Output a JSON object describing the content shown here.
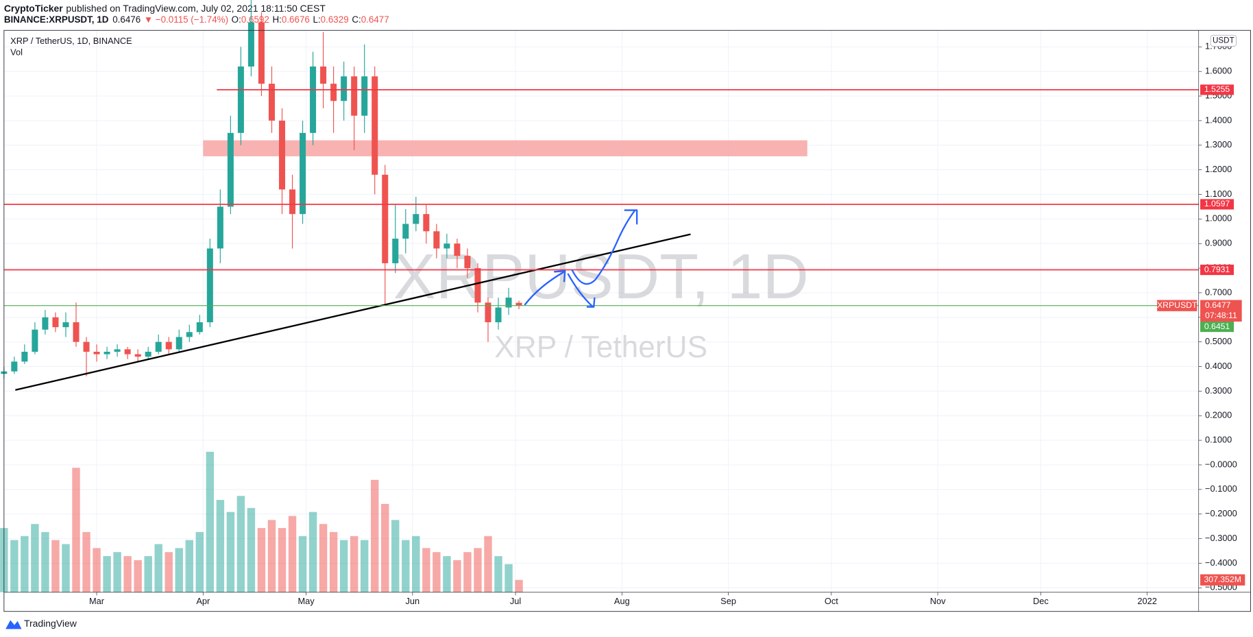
{
  "header": {
    "publisher": "CryptoTicker",
    "published": "published on TradingView.com, July 02, 2021 18:11:50 CEST",
    "symbol": "BINANCE:XRPUSDT, 1D",
    "last": "0.6476",
    "change": "▼ −0.0115 (−1.74%)",
    "o_label": "O:",
    "o": "0.6592",
    "h_label": "H:",
    "h": "0.6676",
    "l_label": "L:",
    "l": "0.6329",
    "c_label": "C:",
    "c": "0.6477"
  },
  "footer": {
    "brand": "TradingView"
  },
  "chart_data": {
    "type": "candlestick",
    "title": "XRP / TetherUS, 1D, BINANCE",
    "currency": "USDT",
    "watermark": "XRPUSDT, 1D",
    "watermark_subtitle": "XRP / TetherUS",
    "x": [
      33,
      36,
      39,
      42,
      45,
      48,
      51,
      54,
      57,
      60,
      63,
      66,
      69,
      72,
      75,
      78,
      81,
      84,
      87,
      90,
      93,
      96,
      99,
      102,
      105,
      108,
      111,
      114,
      117,
      120,
      123,
      126,
      129,
      132,
      135,
      138,
      141,
      144,
      147,
      150,
      153,
      156,
      159,
      162,
      165,
      168,
      171,
      174,
      177,
      180,
      183
    ],
    "open": [
      0.37,
      0.38,
      0.42,
      0.46,
      0.55,
      0.6,
      0.56,
      0.58,
      0.5,
      0.46,
      0.45,
      0.46,
      0.47,
      0.45,
      0.44,
      0.46,
      0.5,
      0.47,
      0.52,
      0.54,
      0.58,
      0.88,
      1.05,
      1.35,
      1.62,
      1.8,
      1.55,
      1.4,
      1.12,
      1.02,
      1.35,
      1.62,
      1.55,
      1.48,
      1.58,
      1.42,
      1.58,
      1.18,
      0.82,
      0.92,
      0.98,
      1.02,
      0.95,
      0.88,
      0.9,
      0.85,
      0.8,
      0.66,
      0.58,
      0.64,
      0.6592
    ],
    "high": [
      0.4,
      0.44,
      0.49,
      0.58,
      0.63,
      0.62,
      0.62,
      0.66,
      0.52,
      0.49,
      0.48,
      0.49,
      0.48,
      0.47,
      0.48,
      0.53,
      0.52,
      0.55,
      0.57,
      0.61,
      0.92,
      1.12,
      1.42,
      1.7,
      1.96,
      1.84,
      1.62,
      1.45,
      1.18,
      1.4,
      1.68,
      1.76,
      1.62,
      1.64,
      1.62,
      1.71,
      1.62,
      1.22,
      1.06,
      1.04,
      1.09,
      1.06,
      0.98,
      0.94,
      0.92,
      0.88,
      0.82,
      0.68,
      0.68,
      0.72,
      0.6676
    ],
    "low": [
      0.35,
      0.37,
      0.41,
      0.45,
      0.53,
      0.54,
      0.52,
      0.48,
      0.36,
      0.42,
      0.43,
      0.44,
      0.43,
      0.42,
      0.43,
      0.45,
      0.45,
      0.46,
      0.5,
      0.53,
      0.56,
      0.82,
      1.02,
      1.3,
      1.58,
      1.5,
      1.35,
      1.02,
      0.88,
      0.98,
      1.3,
      1.45,
      1.35,
      1.4,
      1.28,
      1.35,
      1.1,
      0.65,
      0.78,
      0.86,
      0.95,
      0.9,
      0.84,
      0.84,
      0.8,
      0.76,
      0.62,
      0.5,
      0.55,
      0.61,
      0.6329
    ],
    "close": [
      0.38,
      0.42,
      0.46,
      0.55,
      0.6,
      0.56,
      0.58,
      0.5,
      0.46,
      0.45,
      0.46,
      0.47,
      0.45,
      0.44,
      0.46,
      0.5,
      0.47,
      0.52,
      0.54,
      0.58,
      0.88,
      1.05,
      1.35,
      1.62,
      1.8,
      1.55,
      1.4,
      1.12,
      1.02,
      1.35,
      1.62,
      1.55,
      1.48,
      1.58,
      1.42,
      1.58,
      1.18,
      0.82,
      0.92,
      0.98,
      1.02,
      0.95,
      0.88,
      0.9,
      0.85,
      0.8,
      0.66,
      0.58,
      0.64,
      0.68,
      0.6477
    ],
    "up_color": "#26a69a",
    "down_color": "#ef5350",
    "volume": {
      "name": "Vol",
      "ylim": [
        0,
        14000
      ],
      "values": [
        1600,
        1300,
        1400,
        1700,
        1500,
        1300,
        1200,
        3100,
        1500,
        1100,
        900,
        1000,
        900,
        800,
        900,
        1200,
        1000,
        1100,
        1300,
        1500,
        3500,
        2300,
        2000,
        2400,
        2100,
        1600,
        1800,
        1600,
        1900,
        1400,
        2000,
        1700,
        1500,
        1300,
        1400,
        1300,
        2800,
        2200,
        1800,
        1300,
        1400,
        1100,
        1000,
        900,
        800,
        1000,
        1100,
        1400,
        900,
        700,
        307.352
      ],
      "value_labels": [
        null,
        null,
        null,
        null,
        null,
        null,
        null,
        null,
        null,
        null,
        null,
        null,
        null,
        null,
        null,
        null,
        null,
        null,
        null,
        null,
        null,
        null,
        null,
        null,
        null,
        null,
        null,
        null,
        null,
        null,
        null,
        null,
        null,
        null,
        null,
        null,
        null,
        null,
        null,
        null,
        null,
        null,
        null,
        null,
        null,
        null,
        null,
        null,
        null,
        null,
        "307.352M"
      ]
    },
    "xlim": [
      33,
      381
    ],
    "xticks": [
      {
        "value": 60,
        "label": "Mar"
      },
      {
        "value": 91,
        "label": "Apr"
      },
      {
        "value": 121,
        "label": "May"
      },
      {
        "value": 152,
        "label": "Jun"
      },
      {
        "value": 182,
        "label": "Jul"
      },
      {
        "value": 213,
        "label": "Aug"
      },
      {
        "value": 244,
        "label": "Sep"
      },
      {
        "value": 274,
        "label": "Oct"
      },
      {
        "value": 305,
        "label": "Nov"
      },
      {
        "value": 335,
        "label": "Dec"
      },
      {
        "value": 366,
        "label": "2022"
      }
    ],
    "ylim": [
      -0.518,
      1.767
    ],
    "yticks": [
      {
        "value": 1.7,
        "label": "1.7000"
      },
      {
        "value": 1.6,
        "label": "1.6000"
      },
      {
        "value": 1.5,
        "label": "1.5000"
      },
      {
        "value": 1.4,
        "label": "1.4000"
      },
      {
        "value": 1.3,
        "label": "1.3000"
      },
      {
        "value": 1.2,
        "label": "1.2000"
      },
      {
        "value": 1.1,
        "label": "1.1000"
      },
      {
        "value": 1.0,
        "label": "1.0000"
      },
      {
        "value": 0.9,
        "label": "0.9000"
      },
      {
        "value": 0.8,
        "label": "0.8000"
      },
      {
        "value": 0.7,
        "label": "0.7000"
      },
      {
        "value": 0.6,
        "label": "0.6000"
      },
      {
        "value": 0.5,
        "label": "0.5000"
      },
      {
        "value": 0.4,
        "label": "0.4000"
      },
      {
        "value": 0.3,
        "label": "0.3000"
      },
      {
        "value": 0.2,
        "label": "0.2000"
      },
      {
        "value": 0.1,
        "label": "0.1000"
      },
      {
        "value": 0,
        "label": "−0.0000"
      },
      {
        "value": -0.1,
        "label": "−0.1000"
      },
      {
        "value": -0.2,
        "label": "−0.2000"
      },
      {
        "value": -0.3,
        "label": "−0.3000"
      },
      {
        "value": -0.4,
        "label": "−0.4000"
      },
      {
        "value": -0.5,
        "label": "−0.5000"
      }
    ],
    "grid": true,
    "levels": [
      {
        "value": 1.5255,
        "color": "#f23645",
        "x_start": 95
      },
      {
        "value": 1.0597,
        "color": "#f23645"
      },
      {
        "value": 0.7931,
        "color": "#f23645"
      }
    ],
    "zone": {
      "y": [
        1.255,
        1.32
      ],
      "x": [
        91,
        267
      ],
      "color": "#f7a5a5"
    },
    "trendline": {
      "x": [
        36.3,
        233
      ],
      "y": [
        0.3045,
        0.938
      ],
      "color": "#000000"
    },
    "last_price": {
      "name": "XRPUSDT",
      "value": 0.6477,
      "countdown": "07:48:11",
      "color": "#ef5350",
      "line_color": "#4caf50"
    },
    "bid": {
      "value": 0.6451,
      "color": "#4caf50"
    }
  }
}
